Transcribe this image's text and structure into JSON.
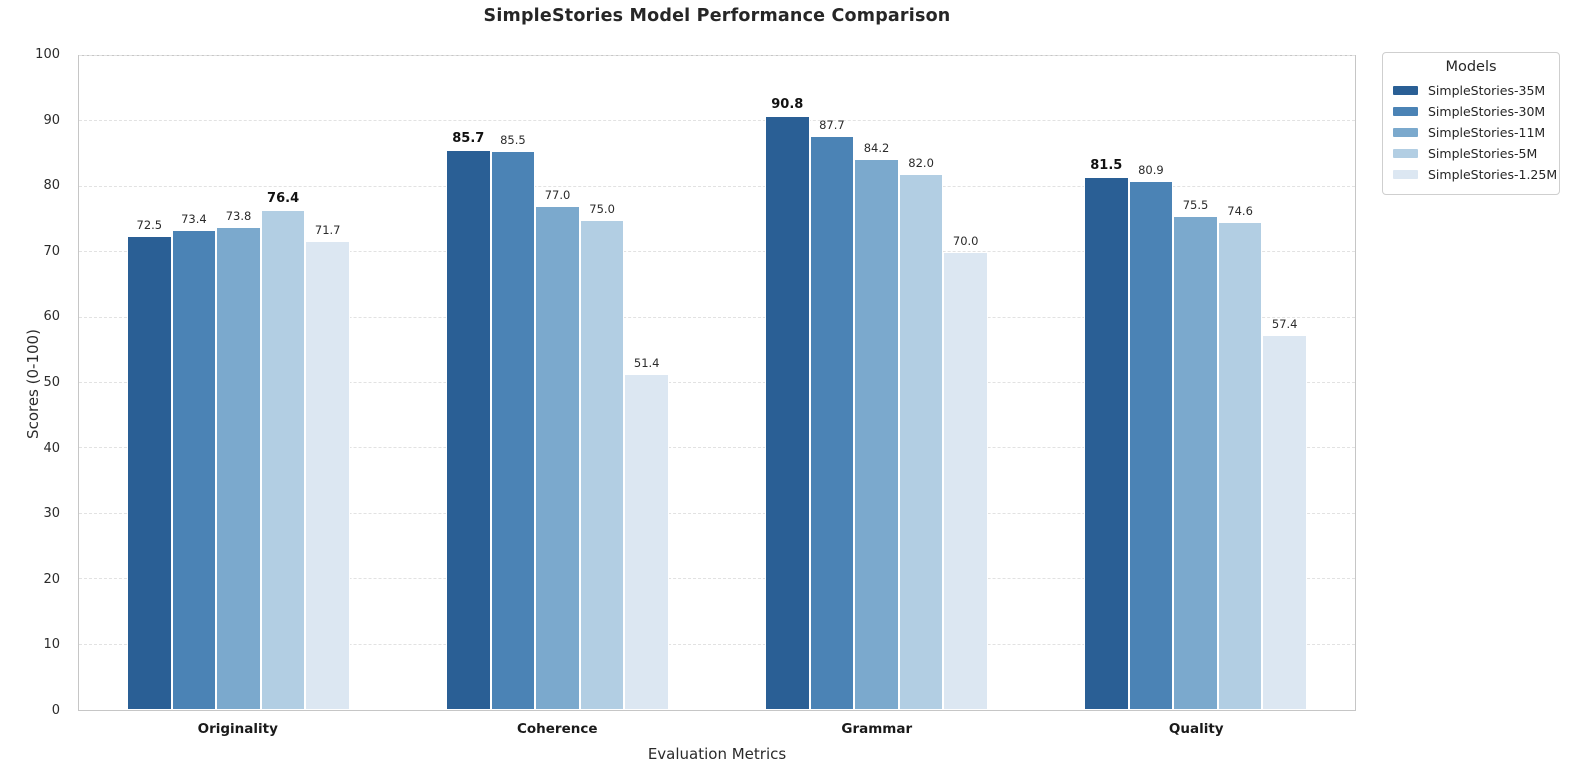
{
  "chart_data": {
    "type": "bar",
    "title": "SimpleStories Model Performance Comparison",
    "xlabel": "Evaluation Metrics",
    "ylabel": "Scores (0-100)",
    "ylim": [
      0,
      100
    ],
    "ytick_step": 10,
    "grid": "horizontal-dashed",
    "bold_max_per_category": true,
    "value_label_decimals": 1,
    "legend_title": "Models",
    "legend_position": "outside-upper-right",
    "categories": [
      "Originality",
      "Coherence",
      "Grammar",
      "Quality"
    ],
    "series": [
      {
        "name": "SimpleStories-35M",
        "color": "#2A5F95",
        "values": [
          72.5,
          85.7,
          90.8,
          81.5
        ]
      },
      {
        "name": "SimpleStories-30M",
        "color": "#4B83B5",
        "values": [
          73.4,
          85.5,
          87.7,
          80.9
        ]
      },
      {
        "name": "SimpleStories-11M",
        "color": "#7BA9CD",
        "values": [
          73.8,
          77.0,
          84.2,
          75.5
        ]
      },
      {
        "name": "SimpleStories-5M",
        "color": "#B2CEE3",
        "values": [
          76.4,
          75.0,
          82.0,
          74.6
        ]
      },
      {
        "name": "SimpleStories-1.25M",
        "color": "#DCE7F2",
        "values": [
          71.7,
          51.4,
          70.0,
          57.4
        ]
      }
    ]
  }
}
